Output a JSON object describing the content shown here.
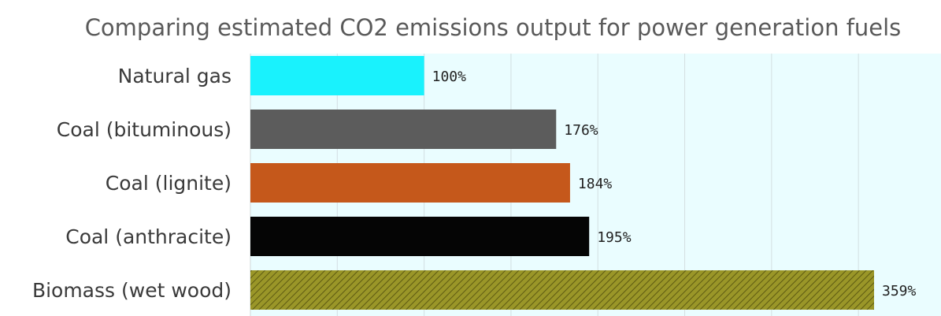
{
  "chart_data": {
    "type": "bar",
    "orientation": "horizontal",
    "title": "Comparing estimated CO2 emissions output for power generation fuels",
    "categories": [
      "Natural gas",
      "Coal (bituminous)",
      "Coal (lignite)",
      "Coal (anthracite)",
      "Biomass (wet wood)"
    ],
    "values": [
      100,
      176,
      184,
      195,
      359
    ],
    "value_labels": [
      "100%",
      "176%",
      "184%",
      "195%",
      "359%"
    ],
    "bar_colors": [
      "#19f2fd",
      "#5c5c5c",
      "#c5581b",
      "#050505",
      "#9a9628"
    ],
    "hatched_bars": [
      false,
      false,
      false,
      false,
      true
    ],
    "xlim": [
      0,
      360
    ],
    "x_gridlines": [
      50,
      100,
      150,
      200,
      250,
      300,
      350
    ],
    "grid": true,
    "xlabel": "",
    "ylabel": "",
    "plot_background": "#eafdff"
  }
}
